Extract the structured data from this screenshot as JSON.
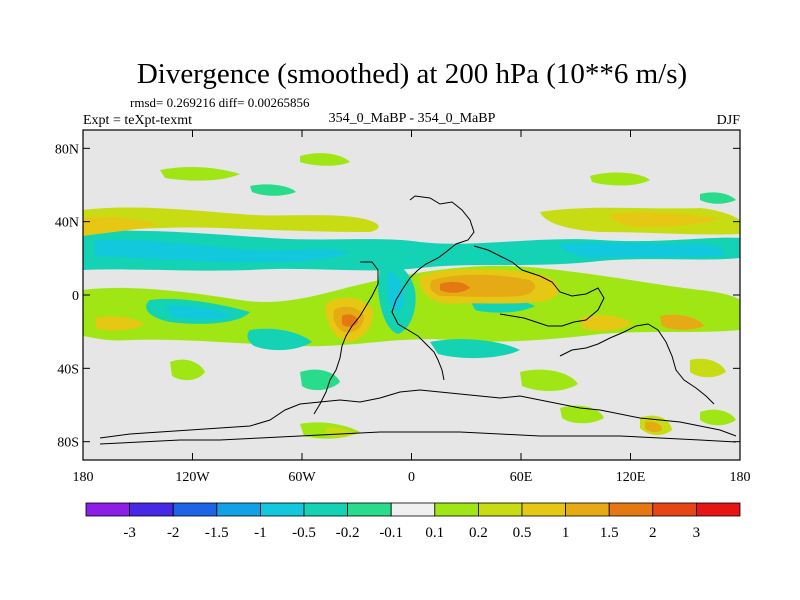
{
  "header": {
    "title": "Divergence (smoothed) at 200 hPa (10**6 m/s)",
    "stats": "rmsd= 0.269216 diff= 0.00265856",
    "experiment": "Expt = teXpt-texmt",
    "case": "354_0_MaBP - 354_0_MaBP",
    "season": "DJF"
  },
  "map": {
    "projection": "cylindrical-equidistant",
    "lon_range": [
      -180,
      180
    ],
    "lat_range": [
      -90,
      90
    ],
    "background_color": "#e6e6e6",
    "coastline_color": "#000000",
    "x_ticks": [
      {
        "value": -180,
        "label": "180"
      },
      {
        "value": -120,
        "label": "120W"
      },
      {
        "value": -60,
        "label": "60W"
      },
      {
        "value": 0,
        "label": "0"
      },
      {
        "value": 60,
        "label": "60E"
      },
      {
        "value": 120,
        "label": "120E"
      },
      {
        "value": 180,
        "label": "180"
      }
    ],
    "y_ticks": [
      {
        "value": 80,
        "label": "80N"
      },
      {
        "value": 40,
        "label": "40N"
      },
      {
        "value": 0,
        "label": "0"
      },
      {
        "value": -40,
        "label": "40S"
      },
      {
        "value": -80,
        "label": "80S"
      }
    ]
  },
  "colorbar": {
    "colors": [
      "#8c1ee6",
      "#4628e6",
      "#1e64e6",
      "#14a0e6",
      "#12c8dc",
      "#14d2b4",
      "#28dc8c",
      "#f0f0f0",
      "#a0e614",
      "#c8dc14",
      "#e6c814",
      "#e6aa14",
      "#e67814",
      "#e64614",
      "#e61414"
    ],
    "labels": [
      "-3",
      "-2",
      "-1.5",
      "-1",
      "-0.5",
      "-0.2",
      "-0.1",
      "0.1",
      "0.2",
      "0.5",
      "1",
      "1.5",
      "2",
      "3"
    ]
  }
}
